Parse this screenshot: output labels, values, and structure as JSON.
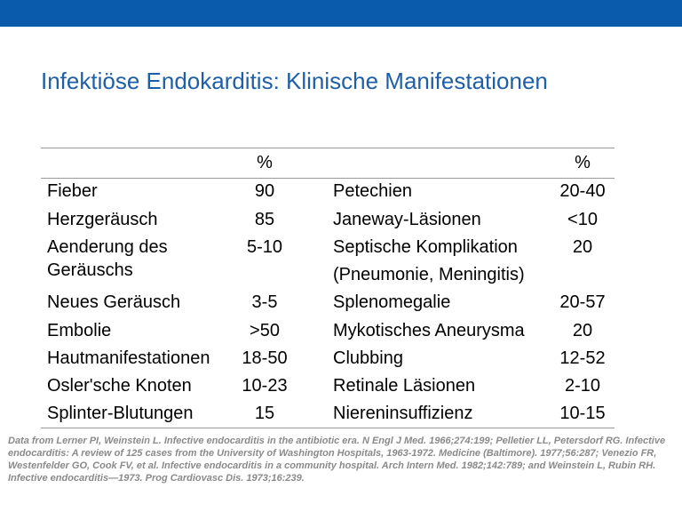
{
  "colors": {
    "top_bar": "#0a5bab",
    "title": "#1f5fa6",
    "footnote": "#8a8a8a"
  },
  "title": "Infektiöse Endokarditis: Klinische Manifestationen",
  "table": {
    "headers": [
      "",
      "%",
      "",
      "%"
    ],
    "rows": [
      {
        "left_label": "Fieber",
        "left_pct": "90",
        "right_label": "Petechien",
        "right_pct": "20-40"
      },
      {
        "left_label": "Herzgeräusch",
        "left_pct": "85",
        "right_label": "Janeway-Läsionen",
        "right_pct": "<10"
      },
      {
        "left_label": "Aenderung des",
        "left_label_2": "Geräuschs",
        "left_pct": "5-10",
        "right_label": "Septische Komplikation",
        "right_label_2": "(Pneumonie, Meningitis)",
        "right_pct": "20"
      },
      {
        "left_label": "Neues Geräusch",
        "left_pct": "3-5",
        "right_label": "Splenomegalie",
        "right_pct": "20-57"
      },
      {
        "left_label": "Embolie",
        "left_pct": ">50",
        "right_label": "Mykotisches Aneurysma",
        "right_pct": "20"
      },
      {
        "left_label": "Hautmanifestationen",
        "left_pct": "18-50",
        "right_label": "Clubbing",
        "right_pct": "12-52"
      },
      {
        "left_label": "Osler'sche Knoten",
        "left_pct": "10-23",
        "right_label": "Retinale Läsionen",
        "right_pct": "2-10"
      },
      {
        "left_label": "Splinter-Blutungen",
        "left_pct": "15",
        "right_label": "Niereninsuffizienz",
        "right_pct": "10-15"
      }
    ]
  },
  "footnote": "Data from Lerner PI, Weinstein L. Infective endocarditis in the antibiotic era. N Engl J Med. 1966;274:199; Pelletier LL, Petersdorf RG. Infective endocarditis: A review of 125 cases from the University of Washington Hospitals, 1963-1972. Medicine (Baltimore). 1977;56:287; Venezio FR, Westenfelder GO, Cook FV, et al. Infective endocarditis in a community hospital. Arch Intern Med. 1982;142:789; and Weinstein L, Rubin RH. Infective endocarditis—1973. Prog Cardiovasc Dis. 1973;16:239."
}
